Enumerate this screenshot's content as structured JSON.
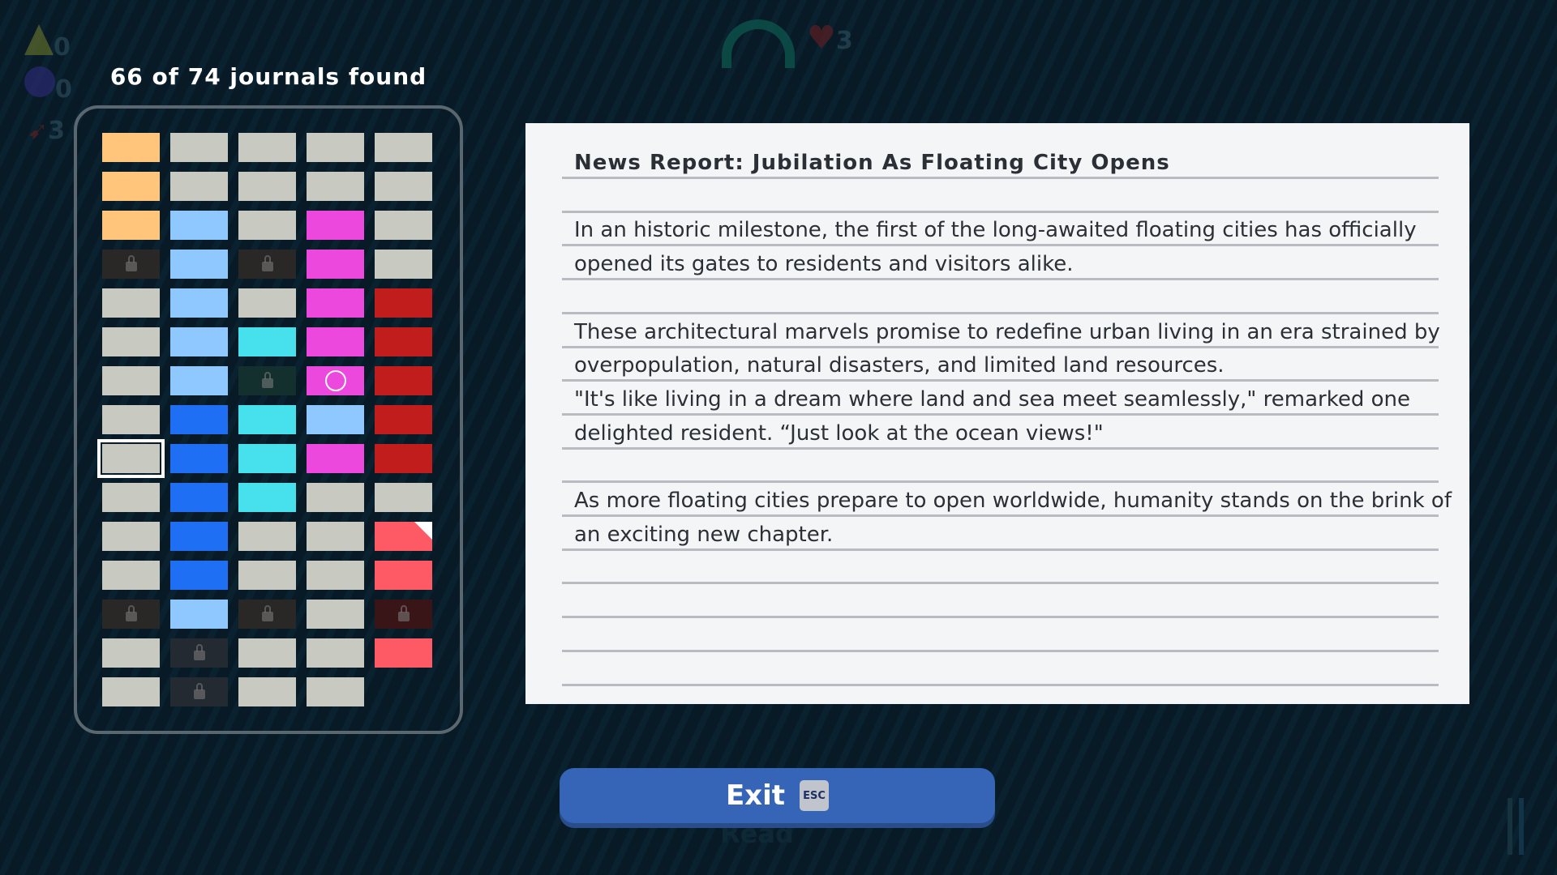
{
  "hud": {
    "triangle_count": "0",
    "ball_count": "0",
    "arrow_count": "3",
    "heart_count": "3"
  },
  "journals": {
    "found_label": "66 of 74 journals found"
  },
  "colors": {
    "O": "#ffc57a",
    "G": "#c8c9c0",
    "LB": "#8fc8ff",
    "M": "#ec48de",
    "B": "#1f6ff5",
    "C": "#47e1ee",
    "R": "#c21d1d",
    "P": "#fd5a66",
    "L": "#2a2826",
    "LT": "#13302f",
    "LR": "#3a1517",
    "LS": "#232a31"
  },
  "grid": [
    [
      "O",
      "G",
      "G",
      "G",
      "G"
    ],
    [
      "O",
      "G",
      "G",
      "G",
      "G"
    ],
    [
      "O",
      "LB",
      "G",
      "M",
      "G"
    ],
    [
      "L",
      "LB",
      "L",
      "M",
      "G"
    ],
    [
      "G",
      "LB",
      "G",
      "M",
      "R"
    ],
    [
      "G",
      "LB",
      "C",
      "M",
      "R"
    ],
    [
      "G",
      "LB",
      "LT",
      "M*",
      "R"
    ],
    [
      "G",
      "B",
      "C",
      "LB",
      "R"
    ],
    [
      "G!",
      "B",
      "C",
      "M",
      "R"
    ],
    [
      "G",
      "B",
      "C",
      "G",
      "G"
    ],
    [
      "G",
      "B",
      "G",
      "G",
      "P^"
    ],
    [
      "G",
      "B",
      "G",
      "G",
      "P"
    ],
    [
      "L",
      "LB",
      "L",
      "G",
      "LR"
    ],
    [
      "G",
      "LS",
      "G",
      "G",
      "P"
    ],
    [
      "G",
      "LS",
      "G",
      "G",
      ""
    ]
  ],
  "document": {
    "title": "News Report: Jubilation As Floating City Opens",
    "lines": [
      "",
      "In an historic milestone, the first of the long-awaited floating cities has officially",
      "opened its gates to residents and visitors alike.",
      "",
      "These architectural marvels promise to redefine urban living in an era strained by",
      "overpopulation, natural disasters, and limited land resources.",
      "\"It's like living in a dream where land and sea meet seamlessly,\" remarked one",
      "delighted resident. “Just look at the ocean views!\"",
      "",
      "As more floating cities prepare to open worldwide, humanity stands on the brink of",
      "an exciting new chapter."
    ]
  },
  "exit": {
    "label": "Exit",
    "key": "ESC"
  },
  "background_hint": {
    "read_label": "Read"
  }
}
